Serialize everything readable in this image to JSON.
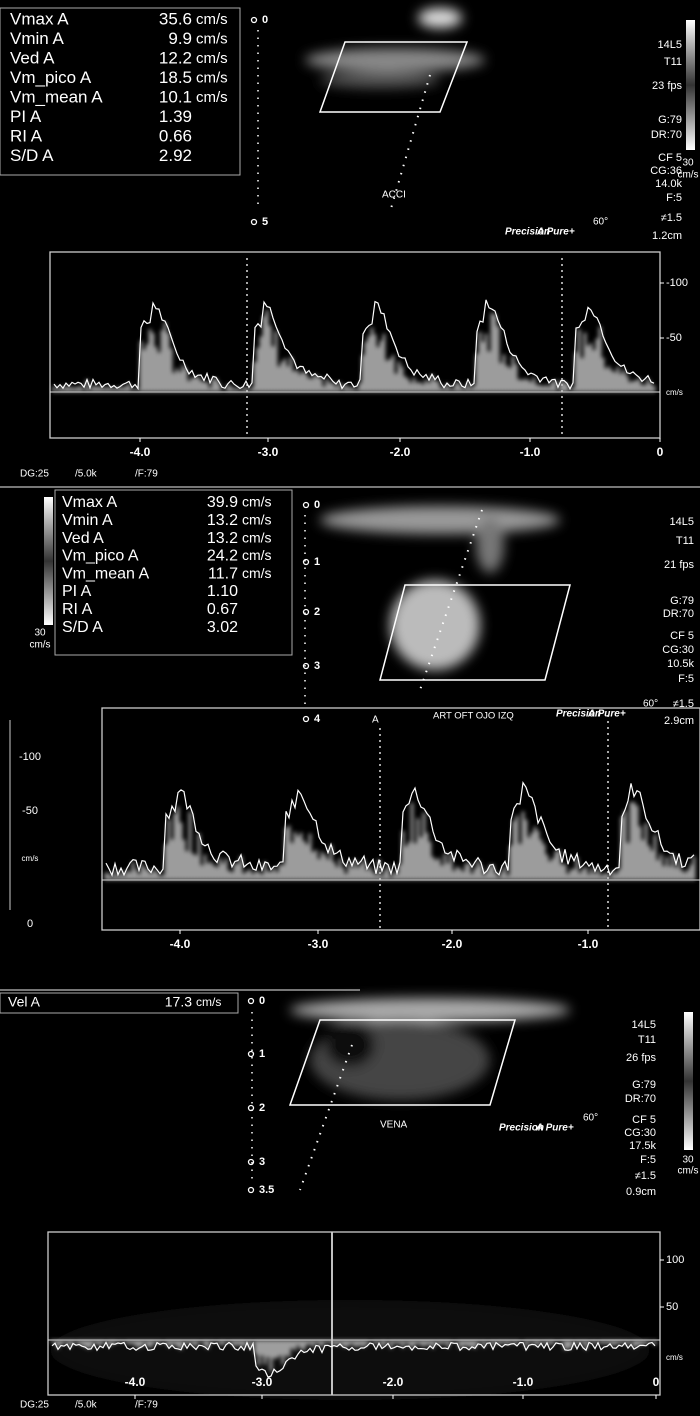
{
  "panels": [
    {
      "measurements": [
        {
          "name": "Vmax A",
          "value": "35.6",
          "unit": "cm/s"
        },
        {
          "name": "Vmin A",
          "value": "9.9",
          "unit": "cm/s"
        },
        {
          "name": "Ved A",
          "value": "12.2",
          "unit": "cm/s"
        },
        {
          "name": "Vm_pico A",
          "value": "18.5",
          "unit": "cm/s"
        },
        {
          "name": "Vm_mean A",
          "value": "10.1",
          "unit": "cm/s"
        },
        {
          "name": "PI A",
          "value": "1.39"
        },
        {
          "name": "RI A",
          "value": "0.66"
        },
        {
          "name": "S/D A",
          "value": "2.92"
        }
      ],
      "depth_marks": [
        "0",
        "5"
      ],
      "probe": [
        "14L5",
        "T11",
        "23 fps",
        "G:79",
        "DR:70",
        "CF 5",
        "CG:36",
        "14.0k",
        "F:5"
      ],
      "precision": "Precision",
      "apure": "A Pure+",
      "angle": "60°",
      "gate": "≠1.5",
      "gate_depth": "1.2cm",
      "vessel_label": "ACCI",
      "scale_max": "30",
      "scale_unit": "cm/s",
      "spectrum_yticks": [
        "-100",
        "-50"
      ],
      "spectrum_unit": "cm/s",
      "spectrum_xticks": [
        "-4.0",
        "-3.0",
        "-2.0",
        "-1.0",
        "0"
      ],
      "footer": [
        "DG:25",
        "/5.0k",
        "/F:79"
      ]
    },
    {
      "measurements": [
        {
          "name": "Vmax A",
          "value": "39.9",
          "unit": "cm/s"
        },
        {
          "name": "Vmin A",
          "value": "13.2",
          "unit": "cm/s"
        },
        {
          "name": "Ved A",
          "value": "13.2",
          "unit": "cm/s"
        },
        {
          "name": "Vm_pico A",
          "value": "24.2",
          "unit": "cm/s"
        },
        {
          "name": "Vm_mean A",
          "value": "11.7",
          "unit": "cm/s"
        },
        {
          "name": "PI A",
          "value": "1.10"
        },
        {
          "name": "RI A",
          "value": "0.67"
        },
        {
          "name": "S/D A",
          "value": "3.02"
        }
      ],
      "depth_marks": [
        "0",
        "1",
        "2",
        "3",
        "4"
      ],
      "probe": [
        "14L5",
        "T11",
        "21 fps",
        "G:79",
        "DR:70",
        "CF 5",
        "CG:30",
        "10.5k",
        "F:5"
      ],
      "precision": "Precision",
      "apure": "A Pure+",
      "angle": "60°",
      "gate": "≠1.5",
      "gate_depth": "2.9cm",
      "vessel_label": "ART OFT OJO IZQ",
      "cursor_label": "A",
      "scale_max": "30",
      "scale_unit": "cm/s",
      "left_overlay_ticks": [
        "-100",
        "-50",
        "cm/s",
        "0"
      ],
      "spectrum_xticks": [
        "-4.0",
        "-3.0",
        "-2.0",
        "-1.0"
      ]
    },
    {
      "measurements": [
        {
          "name": "Vel A",
          "value": "17.3",
          "unit": "cm/s"
        }
      ],
      "depth_marks": [
        "0",
        "1",
        "2",
        "3",
        "3.5"
      ],
      "probe": [
        "14L5",
        "T11",
        "26 fps",
        "G:79",
        "DR:70",
        "CF 5",
        "CG:30",
        "17.5k",
        "F:5"
      ],
      "precision": "Precision",
      "apure": "A Pure+",
      "angle": "60°",
      "gate": "≠1.5",
      "gate_depth": "0.9cm",
      "vessel_label": "VENA",
      "scale_max": "30",
      "scale_unit": "cm/s",
      "spectrum_yticks": [
        "100",
        "50"
      ],
      "spectrum_unit": "cm/s",
      "spectrum_xticks": [
        "-4.0",
        "-3.0",
        "-2.0",
        "-1.0",
        "0"
      ],
      "footer": [
        "DG:25",
        "/5.0k",
        "/F:79"
      ]
    }
  ]
}
